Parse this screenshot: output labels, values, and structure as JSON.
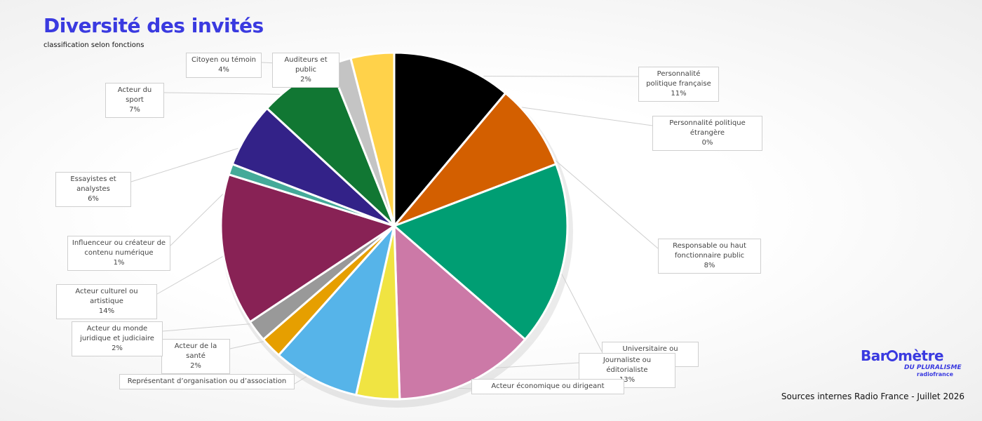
{
  "chart_data": {
    "type": "pie",
    "title": "Diversité des invités",
    "subtitle": "classification selon fonctions",
    "categories": [
      "Personnalité politique française",
      "Personnalité politique étrangère",
      "Responsable ou haut fonctionnaire public",
      "Universitaire ou chercheur",
      "Journaliste ou éditorialiste",
      "Acteur économique ou dirigeant",
      "Représentant d’organisation ou d’association",
      "Acteur de la santé",
      "Acteur du monde juridique et judiciaire",
      "Acteur culturel ou artistique",
      "Influenceur ou créateur de contenu numérique",
      "Essayistes et analystes",
      "Acteur du sport",
      "Auditeurs et public",
      "Citoyen ou témoin"
    ],
    "values": [
      11,
      0,
      8,
      17,
      13,
      4,
      8,
      2,
      2,
      14,
      1,
      6,
      7,
      2,
      4
    ],
    "value_labels": [
      "11%",
      "0%",
      "8%",
      null,
      "13%",
      null,
      null,
      "2%",
      "2%",
      "14%",
      "1%",
      "6%",
      "7%",
      "2%",
      "4%"
    ],
    "colors": [
      "#000000",
      "#888888",
      "#d35f00",
      "#009e73",
      "#cc79a7",
      "#f0e442",
      "#56b4e9",
      "#e69f00",
      "#999999",
      "#882255",
      "#44aa99",
      "#332288",
      "#117733",
      "#c4c4c4",
      "#ffd24a"
    ],
    "source": "Sources internes Radio France - Juillet 2026"
  },
  "logo": {
    "name_start": "Bar",
    "name_end": "mètre",
    "tagline": "DU PLURALISME",
    "brand": "radiofrance"
  }
}
